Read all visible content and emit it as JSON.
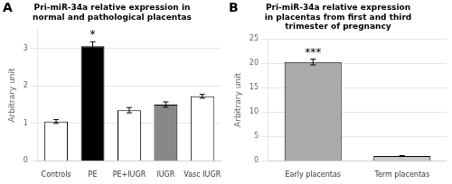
{
  "chart_data": [
    {
      "type": "bar",
      "label": "A",
      "title": "Pri-miR-34a relative expression in\nnormal and pathological placentas",
      "categories": [
        "Controls",
        "PE",
        "PE+IUGR",
        "IUGR",
        "Vasc IUGR"
      ],
      "values": [
        1.05,
        3.05,
        1.35,
        1.5,
        1.72
      ],
      "errors": [
        0.05,
        0.12,
        0.07,
        0.07,
        0.05
      ],
      "colors": [
        "white",
        "black",
        "white",
        "#888888",
        "white"
      ],
      "ylabel": "Arbitrary unit",
      "ylim": [
        0,
        3.5
      ],
      "yticks": [
        0,
        1,
        2,
        3
      ],
      "grid": true,
      "annotations": [
        {
          "text": "*",
          "category": "PE"
        }
      ]
    },
    {
      "type": "bar",
      "label": "B",
      "title": "Pri-miR-34a relative expression\nin placentas from first and third\ntrimester of pregnancy",
      "categories": [
        "Early placentas",
        "Term placentas"
      ],
      "values": [
        20.3,
        1.0
      ],
      "errors": [
        0.6,
        0.1
      ],
      "colors": [
        "#aaaaaa",
        "#cccccc"
      ],
      "ylabel": "Arbitrary unit",
      "ylim": [
        0,
        25
      ],
      "yticks": [
        0,
        5,
        10,
        15,
        20,
        25
      ],
      "grid": true,
      "annotations": [
        {
          "text": "***",
          "category": "Early placentas"
        }
      ]
    }
  ]
}
